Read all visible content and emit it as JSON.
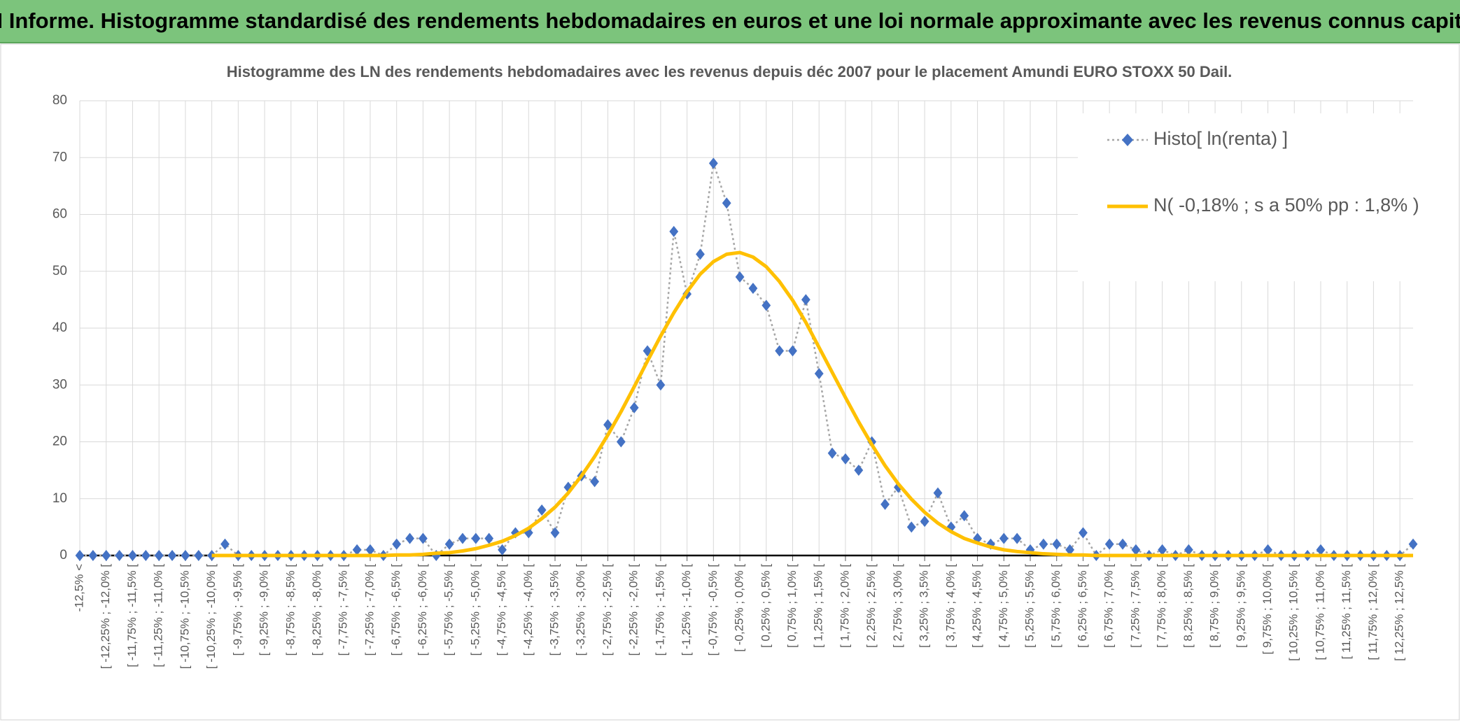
{
  "header": {
    "title": "ADAM Informe. Histogramme standardisé des rendements hebdomadaires en euros et une loi normale approximante avec les revenus connus capitalisés"
  },
  "chart_data": {
    "type": "line",
    "title": "Histogramme des LN des rendements hebdomadaires avec les revenus depuis déc 2007 pour le placement Amundi EURO STOXX 50 Dail.",
    "categories": [
      "-12,5% <",
      null,
      "[ -12,25% ; -12,0% [",
      null,
      "[ -11,75% ; -11,5% [",
      null,
      "[ -11,25% ; -11,0% [",
      null,
      "[ -10,75% ; -10,5% [",
      null,
      "[ -10,25% ; -10,0% [",
      null,
      "[ -9,75% ; -9,5% [",
      null,
      "[ -9,25% ; -9,0% [",
      null,
      "[ -8,75% ; -8,5% [",
      null,
      "[ -8,25% ; -8,0% [",
      null,
      "[ -7,75% ; -7,5% [",
      null,
      "[ -7,25% ; -7,0% [",
      null,
      "[ -6,75% ; -6,5% [",
      null,
      "[ -6,25% ; -6,0% [",
      null,
      "[ -5,75% ; -5,5% [",
      null,
      "[ -5,25% ; -5,0% [",
      null,
      "[ -4,75% ; -4,5% [",
      null,
      "[ -4,25% ; -4,0% [",
      null,
      "[ -3,75% ; -3,5% [",
      null,
      "[ -3,25% ; -3,0% [",
      null,
      "[ -2,75% ; -2,5% [",
      null,
      "[ -2,25% ; -2,0% [",
      null,
      "[ -1,75% ; -1,5% [",
      null,
      "[ -1,25% ; -1,0% [",
      null,
      "[ -0,75% ; -0,5% [",
      null,
      "[ -0,25% ; 0,0% [",
      null,
      "[ 0,25% ; 0,5% [",
      null,
      "[ 0,75% ; 1,0% [",
      null,
      "[ 1,25% ; 1,5% [",
      null,
      "[ 1,75% ; 2,0% [",
      null,
      "[ 2,25% ; 2,5% [",
      null,
      "[ 2,75% ; 3,0% [",
      null,
      "[ 3,25% ; 3,5% [",
      null,
      "[ 3,75% ; 4,0% [",
      null,
      "[ 4,25% ; 4,5% [",
      null,
      "[ 4,75% ; 5,0% [",
      null,
      "[ 5,25% ; 5,5% [",
      null,
      "[ 5,75% ; 6,0% [",
      null,
      "[ 6,25% ; 6,5% [",
      null,
      "[ 6,75% ; 7,0% [",
      null,
      "[ 7,25% ; 7,5% [",
      null,
      "[ 7,75% ; 8,0% [",
      null,
      "[ 8,25% ; 8,5% [",
      null,
      "[ 8,75% ; 9,0% [",
      null,
      "[ 9,25% ; 9,5% [",
      null,
      "[ 9,75% ; 10,0% [",
      null,
      "[ 10,25% ; 10,5% [",
      null,
      "[ 10,75% ; 11,0% [",
      null,
      "[ 11,25% ; 11,5% [",
      null,
      "[ 11,75% ; 12,0% [",
      null,
      "[ 12,25% ; 12,5% [",
      null
    ],
    "series": [
      {
        "name": "Histo[ ln(renta) ]",
        "color": "#4472c4",
        "line_color": "#a6a6a6",
        "dashed": true,
        "markers": true,
        "values": [
          0,
          0,
          0,
          0,
          0,
          0,
          0,
          0,
          0,
          0,
          0,
          2,
          0,
          0,
          0,
          0,
          0,
          0,
          0,
          0,
          0,
          1,
          1,
          0,
          2,
          3,
          3,
          0,
          2,
          3,
          3,
          3,
          1,
          4,
          4,
          8,
          4,
          12,
          14,
          13,
          23,
          20,
          26,
          36,
          30,
          57,
          46,
          53,
          69,
          62,
          49,
          47,
          44,
          36,
          36,
          45,
          32,
          18,
          17,
          15,
          20,
          9,
          12,
          5,
          6,
          11,
          5,
          7,
          3,
          2,
          3,
          3,
          1,
          2,
          2,
          1,
          4,
          0,
          2,
          2,
          1,
          0,
          1,
          0,
          1,
          0,
          0,
          0,
          0,
          0,
          1,
          0,
          0,
          0,
          1,
          0,
          0,
          0,
          0,
          0,
          0,
          2
        ]
      },
      {
        "name": "N( -0,18% ; s a 50% pp : 1,8% )",
        "color": "#ffc000",
        "dashed": false,
        "markers": false,
        "values": [
          null,
          null,
          null,
          null,
          null,
          null,
          null,
          null,
          null,
          null,
          0,
          0,
          0,
          0,
          0,
          0,
          0,
          0,
          0,
          0,
          0,
          0,
          0,
          0,
          0.1,
          0.1,
          0.2,
          0.4,
          0.5,
          0.8,
          1.2,
          1.8,
          2.5,
          3.5,
          4.8,
          6.5,
          8.5,
          11.0,
          14.0,
          17.4,
          21.2,
          25.3,
          29.7,
          34.2,
          38.6,
          42.7,
          46.4,
          49.5,
          51.7,
          53.0,
          53.3,
          52.5,
          50.8,
          48.2,
          44.9,
          41.0,
          36.6,
          32.2,
          27.8,
          23.5,
          19.5,
          15.8,
          12.6,
          9.9,
          7.6,
          5.7,
          4.2,
          3.0,
          2.2,
          1.5,
          1.0,
          0.7,
          0.5,
          0.3,
          0.2,
          0.1,
          0.1,
          0,
          0,
          0,
          0,
          0,
          0,
          0,
          0,
          0,
          0,
          0,
          0,
          0,
          0,
          0,
          0,
          0,
          0,
          0,
          0,
          0,
          0,
          0,
          0,
          0
        ]
      }
    ],
    "ylim": [
      0,
      80
    ],
    "yticks": [
      0,
      10,
      20,
      30,
      40,
      50,
      60,
      70,
      80
    ],
    "grid": true,
    "legend": "top-right"
  }
}
